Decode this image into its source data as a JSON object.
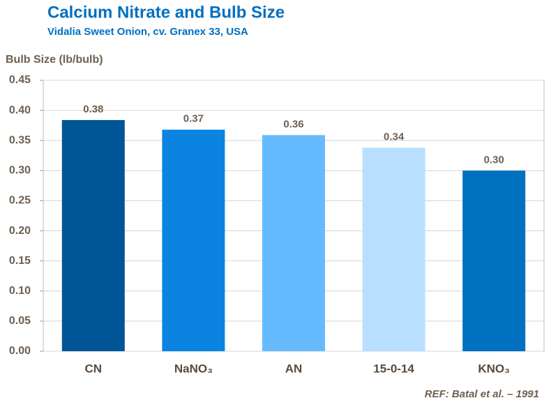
{
  "chart_data": {
    "type": "bar",
    "title": "Calcium Nitrate and Bulb Size",
    "subtitle": "Vidalia  Sweet Onion,  cv. Granex 33, USA",
    "y_label": "Bulb Size (lb/bulb)",
    "note": "REF: Batal et al. – 1991",
    "categories": [
      "CN",
      "NaNO₃",
      "AN",
      "15-0-14",
      "KNO₃"
    ],
    "values": [
      0.384,
      0.368,
      0.359,
      0.338,
      0.3
    ],
    "value_labels": [
      "0.38",
      "0.37",
      "0.36",
      "0.34",
      "0.30"
    ],
    "colors": [
      "#005596",
      "#0a84e0",
      "#66bbff",
      "#b8dfff",
      "#0070c0"
    ],
    "ylim": [
      0,
      0.45
    ],
    "yticks": [
      {
        "value": 0,
        "label": "0.00"
      },
      {
        "value": 0.05,
        "label": "0.05"
      },
      {
        "value": 0.1,
        "label": "0.10"
      },
      {
        "value": 0.15,
        "label": "0.15"
      },
      {
        "value": 0.2,
        "label": "0.20"
      },
      {
        "value": 0.25,
        "label": "0.25"
      },
      {
        "value": 0.3,
        "label": "0.30"
      },
      {
        "value": 0.35,
        "label": "0.35"
      },
      {
        "value": 0.4,
        "label": "0.40"
      },
      {
        "value": 0.45,
        "label": "0.45"
      }
    ],
    "grid": true
  }
}
